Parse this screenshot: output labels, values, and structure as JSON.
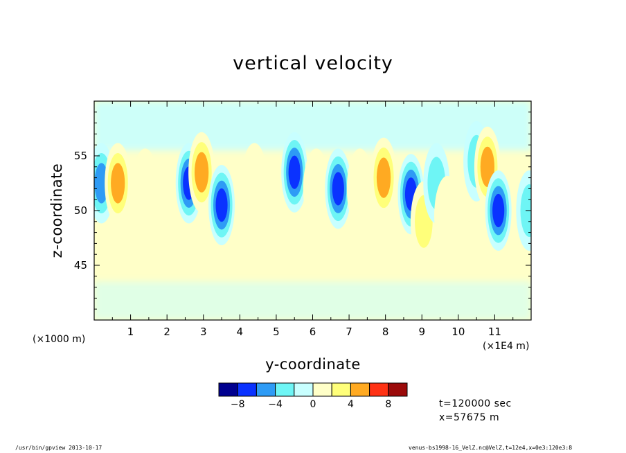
{
  "chart_data": {
    "type": "heatmap",
    "title": "vertical velocity",
    "xlabel": "y-coordinate",
    "ylabel": "z-coordinate",
    "x_unit_left": "(×1000 m)",
    "x_unit_right": "(×1E4 m)",
    "xlim": [
      0,
      12
    ],
    "ylim": [
      40,
      60
    ],
    "x_ticks": [
      "1",
      "2",
      "3",
      "4",
      "5",
      "6",
      "7",
      "8",
      "9",
      "10",
      "11"
    ],
    "y_ticks": [
      "45",
      "50",
      "55"
    ],
    "colorbar": {
      "levels": [
        -10,
        -8,
        -6,
        -4,
        -2,
        0,
        2,
        4,
        6,
        8,
        10
      ],
      "tick_labels": [
        "−8",
        "−4",
        "0",
        "4",
        "8"
      ],
      "colors": [
        "#00008f",
        "#0a32ff",
        "#2e9bf5",
        "#6ef5f5",
        "#c8ffff",
        "#ffffc8",
        "#ffff7a",
        "#ffaa22",
        "#ff3214",
        "#9b0a0a"
      ]
    },
    "features": [
      {
        "y": 0.2,
        "z": 52.5,
        "w": -6
      },
      {
        "y": 0.65,
        "z": 52.5,
        "w": 5
      },
      {
        "y": 1.4,
        "z": 52.0,
        "w": 1
      },
      {
        "y": 2.6,
        "z": 52.5,
        "w": -7
      },
      {
        "y": 2.95,
        "z": 53.5,
        "w": 6
      },
      {
        "y": 3.5,
        "z": 50.5,
        "w": -8
      },
      {
        "y": 4.4,
        "z": 52.5,
        "w": 2
      },
      {
        "y": 5.5,
        "z": 53.5,
        "w": -7
      },
      {
        "y": 6.1,
        "z": 52.0,
        "w": 2
      },
      {
        "y": 6.7,
        "z": 52.0,
        "w": -7
      },
      {
        "y": 7.3,
        "z": 52.0,
        "w": 2
      },
      {
        "y": 7.95,
        "z": 53.0,
        "w": 6
      },
      {
        "y": 8.7,
        "z": 51.5,
        "w": -7
      },
      {
        "y": 9.05,
        "z": 49.0,
        "w": 4
      },
      {
        "y": 9.4,
        "z": 52.5,
        "w": -4
      },
      {
        "y": 9.7,
        "z": 49.5,
        "w": 2
      },
      {
        "y": 10.5,
        "z": 54.5,
        "w": -3
      },
      {
        "y": 10.8,
        "z": 54.0,
        "w": 6
      },
      {
        "y": 11.1,
        "z": 50.0,
        "w": -8
      },
      {
        "y": 11.95,
        "z": 50.0,
        "w": -4
      }
    ]
  },
  "annotations": {
    "time": "t=120000 sec",
    "position": "x=57675 m"
  },
  "footer": {
    "left": "/usr/bin/gpview   2013-10-17",
    "right": "venus-bs1998-16_VelZ.nc@VelZ,t=12e4,x=0e3:120e3:8"
  }
}
